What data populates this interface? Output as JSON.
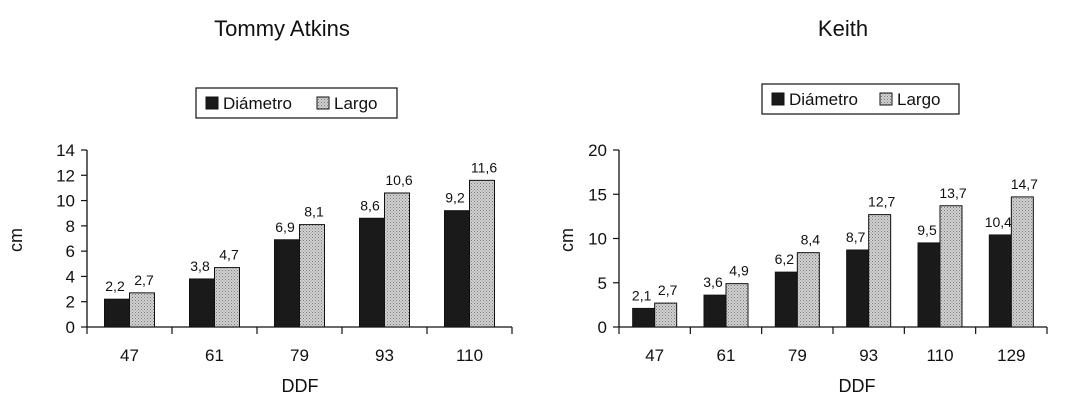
{
  "colors": {
    "diametro": "#1a1a1a",
    "largo": "#c9c9c9",
    "axis": "#111111",
    "background": "#ffffff"
  },
  "chart_data": [
    {
      "type": "bar",
      "title": "Tommy Atkins",
      "xlabel": "DDF",
      "ylabel": "cm",
      "categories": [
        "47",
        "61",
        "79",
        "93",
        "110"
      ],
      "series": [
        {
          "name": "Diámetro",
          "values": [
            2.2,
            3.8,
            6.9,
            8.6,
            9.2
          ],
          "labels": [
            "2,2",
            "3,8",
            "6,9",
            "8,6",
            "9,2"
          ]
        },
        {
          "name": "Largo",
          "values": [
            2.7,
            4.7,
            8.1,
            10.6,
            11.6
          ],
          "labels": [
            "2,7",
            "4,7",
            "8,1",
            "10,6",
            "11,6"
          ]
        }
      ],
      "ylim": [
        0,
        14
      ],
      "yticks": [
        "0",
        "2",
        "4",
        "6",
        "8",
        "10",
        "12",
        "14"
      ],
      "grid": false,
      "legend": "top"
    },
    {
      "type": "bar",
      "title": "Keith",
      "xlabel": "DDF",
      "ylabel": "cm",
      "categories": [
        "47",
        "61",
        "79",
        "93",
        "110",
        "129"
      ],
      "series": [
        {
          "name": "Diámetro",
          "values": [
            2.1,
            3.6,
            6.2,
            8.7,
            9.5,
            10.4
          ],
          "labels": [
            "2,1",
            "3,6",
            "6,2",
            "8,7",
            "9,5",
            "10,4"
          ]
        },
        {
          "name": "Largo",
          "values": [
            2.7,
            4.9,
            8.4,
            12.7,
            13.7,
            14.7
          ],
          "labels": [
            "2,7",
            "4,9",
            "8,4",
            "12,7",
            "13,7",
            "14,7"
          ]
        }
      ],
      "ylim": [
        0,
        20
      ],
      "yticks": [
        "0",
        "5",
        "10",
        "15",
        "20"
      ],
      "grid": false,
      "legend": "top"
    }
  ]
}
